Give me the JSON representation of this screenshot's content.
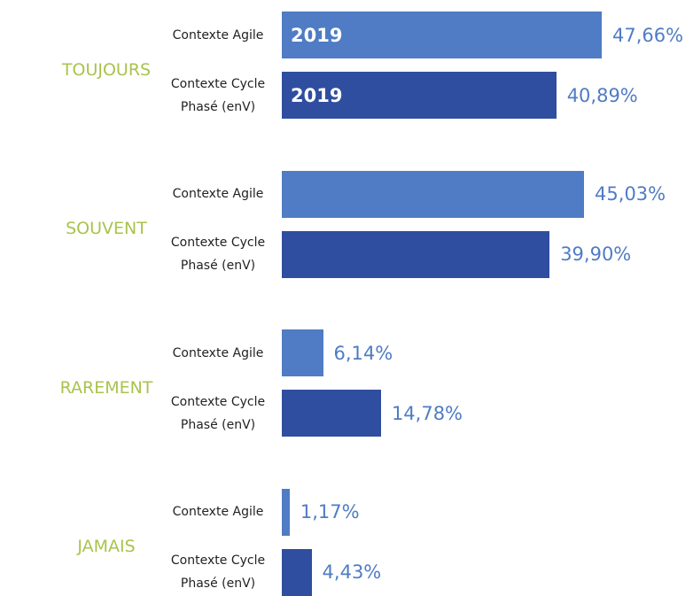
{
  "chart_data": {
    "type": "bar",
    "orientation": "horizontal",
    "categories": [
      "TOUJOURS",
      "SOUVENT",
      "RAREMENT",
      "JAMAIS"
    ],
    "category_color": "#a9c34c",
    "series": [
      {
        "name": "Contexte Agile",
        "color": "#4f7cc4",
        "values": [
          47.66,
          45.03,
          6.14,
          1.17
        ],
        "value_labels": [
          "47,66%",
          "45,03%",
          "6,14%",
          "1,17%"
        ]
      },
      {
        "name": "Contexte Cycle Phasé (enV)",
        "color": "#2f4e9f",
        "values": [
          40.89,
          39.9,
          14.78,
          4.43
        ],
        "value_labels": [
          "40,89%",
          "39,90%",
          "14,78%",
          "4,43%"
        ]
      }
    ],
    "value_label_color": "#4f7cc4",
    "annotations": [
      "2019",
      "2019"
    ]
  }
}
